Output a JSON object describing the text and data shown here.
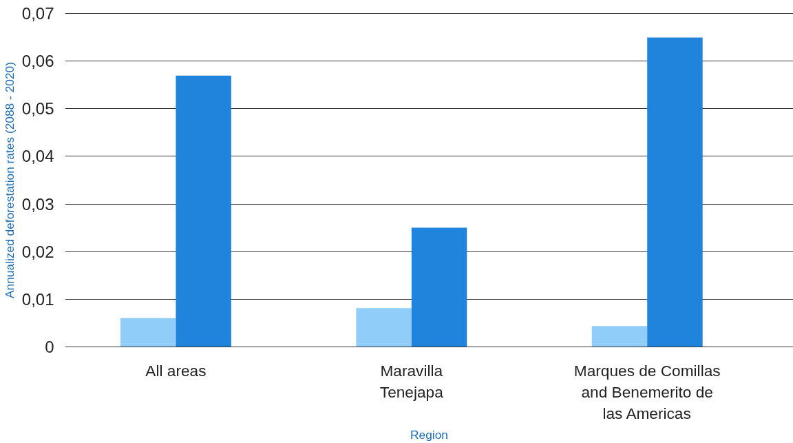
{
  "chart_data": {
    "type": "bar",
    "xlabel": "Region",
    "ylabel": "Annualized deforestation rates (2088 - 2020)",
    "categories": [
      "All areas",
      "Maravilla\nTenejapa",
      "Marques de Comillas\nand Benemerito de\nlas Americas"
    ],
    "series": [
      {
        "color": "#90cdf9",
        "values": [
          0.006,
          0.0081,
          0.0043
        ]
      },
      {
        "color": "#2083dc",
        "values": [
          0.057,
          0.025,
          0.065
        ]
      }
    ],
    "ylim": [
      0,
      0.07
    ],
    "yticks": [
      {
        "value": 0,
        "label": "0"
      },
      {
        "value": 0.01,
        "label": "0,01"
      },
      {
        "value": 0.02,
        "label": "0,02"
      },
      {
        "value": 0.03,
        "label": "0,03"
      },
      {
        "value": 0.04,
        "label": "0,04"
      },
      {
        "value": 0.05,
        "label": "0,05"
      },
      {
        "value": 0.06,
        "label": "0,06"
      },
      {
        "value": 0.07,
        "label": "0,07"
      }
    ],
    "grid": "y"
  }
}
